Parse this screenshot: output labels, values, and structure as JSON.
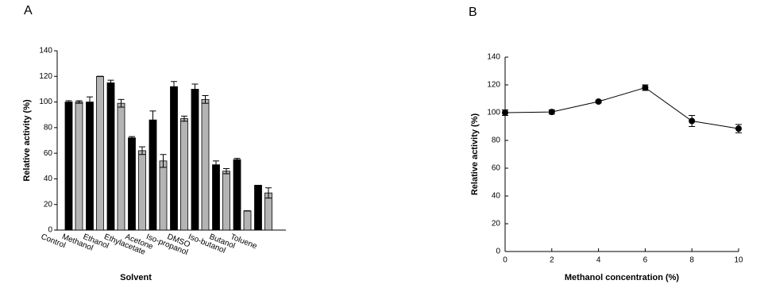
{
  "chart_data": [
    {
      "type": "bar",
      "panel_label": "A",
      "xlabel": "Solvent",
      "ylabel": "Relative activity (%)",
      "categories": [
        "Control",
        "Methanol",
        "Ethanol",
        "Ethylacetate",
        "Acetone",
        "Iso-propanol",
        "DMSO",
        "Iso-butanol",
        "Butanol",
        "Toluene"
      ],
      "series": [
        {
          "color": "#000000",
          "values": [
            100,
            100,
            115,
            72,
            86,
            112,
            110,
            51,
            55,
            35
          ],
          "errors": [
            1,
            4,
            2,
            1,
            7,
            4,
            4,
            3,
            1,
            0
          ]
        },
        {
          "color": "#b4b4b4",
          "values": [
            100,
            120,
            99,
            62,
            54,
            87,
            102,
            46,
            15,
            29
          ],
          "errors": [
            1,
            0,
            3,
            3,
            5,
            2,
            3,
            2,
            0,
            4
          ]
        }
      ],
      "ylim": [
        0,
        140
      ],
      "yticks": [
        0,
        20,
        40,
        60,
        80,
        100,
        120,
        140
      ]
    },
    {
      "type": "line",
      "panel_label": "B",
      "xlabel": "Methanol concentration (%)",
      "ylabel": "Relative activity (%)",
      "x": [
        0,
        2,
        4,
        6,
        8,
        10
      ],
      "series": [
        {
          "color": "#000000",
          "values": [
            100,
            100.5,
            108,
            118,
            94,
            88.5
          ],
          "errors": [
            2,
            1.5,
            1,
            2,
            4,
            3
          ]
        }
      ],
      "xlim": [
        0,
        10
      ],
      "xticks": [
        0,
        2,
        4,
        6,
        8,
        10
      ],
      "ylim": [
        0,
        140
      ],
      "yticks": [
        0,
        20,
        40,
        60,
        80,
        100,
        120,
        140
      ]
    }
  ]
}
